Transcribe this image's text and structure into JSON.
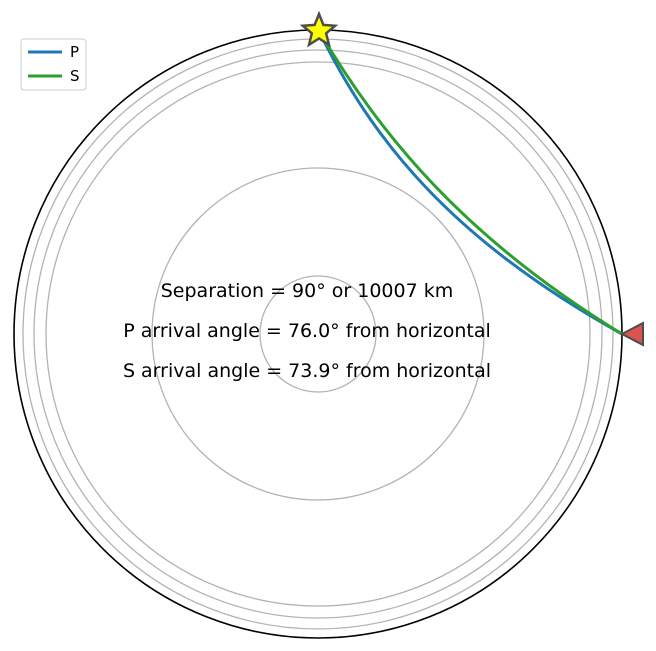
{
  "info": {
    "separation": "Separation = 90° or 10007 km",
    "p_arrival": "P arrival angle = 76.0° from horizontal",
    "s_arrival": "S arrival angle = 73.9° from horizontal"
  },
  "legend": {
    "location": "upper-left",
    "entries": [
      {
        "label": "P",
        "color": "#1f77b4"
      },
      {
        "label": "S",
        "color": "#2ca02c"
      }
    ]
  },
  "colors": {
    "surface": "#000000",
    "discontinuities": "#b3b3b3",
    "p_ray": "#1f77b4",
    "s_ray": "#2ca02c",
    "source_fill": "#ffff00",
    "receiver_fill": "#d9534f",
    "marker_edge": "#4d4d4d"
  },
  "markers": {
    "source": "star-icon",
    "receiver": "triangle-icon"
  }
}
